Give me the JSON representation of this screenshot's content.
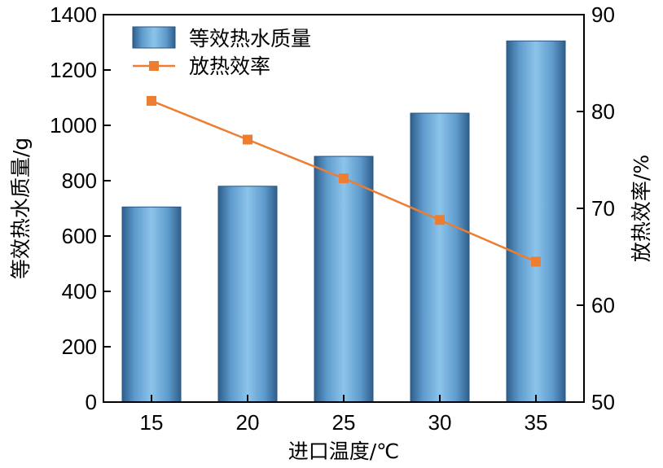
{
  "chart_data": {
    "type": "bar",
    "categories": [
      "15",
      "20",
      "25",
      "30",
      "35"
    ],
    "xlabel": "进口温度/℃",
    "ylabel": "等效热水质量/g",
    "y2label": "放热效率/%",
    "ylim": [
      0,
      1400
    ],
    "y2lim": [
      50,
      90
    ],
    "yticks": [
      "0",
      "200",
      "400",
      "600",
      "800",
      "1000",
      "1200",
      "1400"
    ],
    "y2ticks": [
      "50",
      "60",
      "70",
      "80",
      "90"
    ],
    "grid": false,
    "legend_position": "top-left",
    "series": [
      {
        "name": "等效热水质量",
        "type": "bar",
        "axis": "left",
        "values": [
          705,
          780,
          888,
          1044,
          1305
        ],
        "color": "#5b9bd5"
      },
      {
        "name": "放热效率",
        "type": "line",
        "axis": "right",
        "values": [
          81.1,
          77.1,
          73.1,
          68.8,
          64.5
        ],
        "color": "#ed7d31"
      }
    ]
  }
}
